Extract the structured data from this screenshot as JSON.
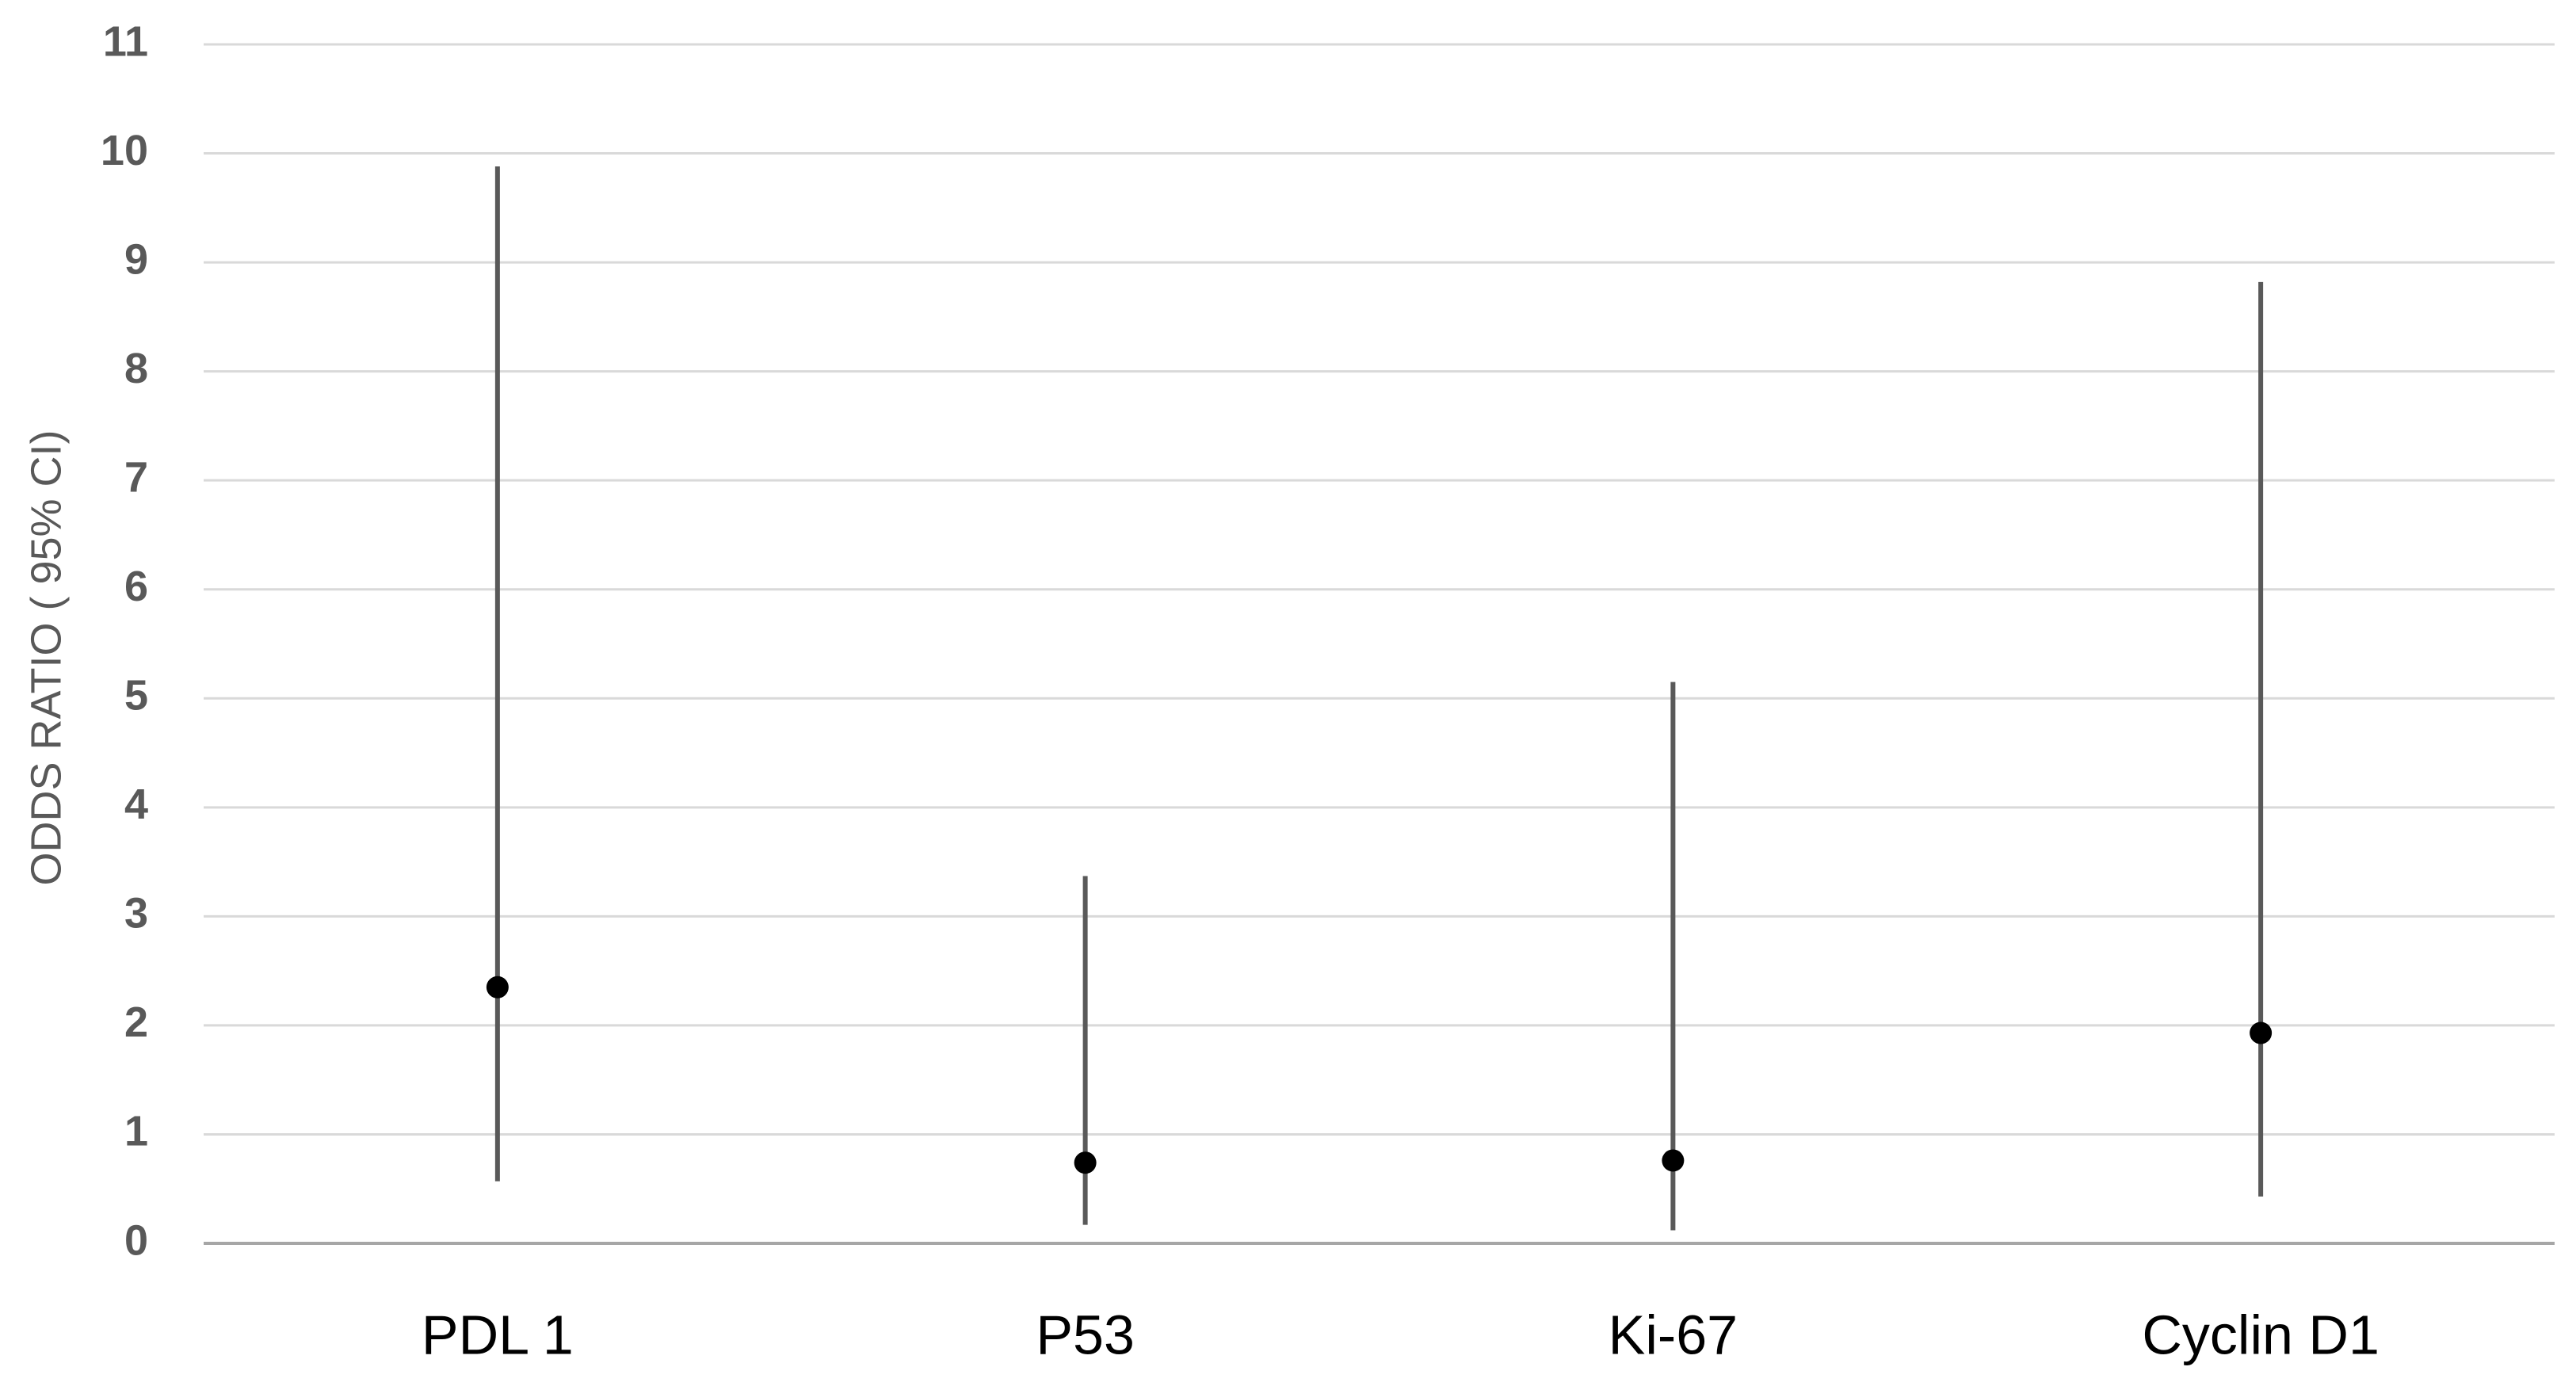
{
  "chart_data": {
    "type": "ci",
    "y_label": "ODDS RATIO ( 95% CI)",
    "categories": [
      "PDL 1",
      "P53",
      "Ki-67",
      "Cyclin D1"
    ],
    "values": [
      2.35,
      0.74,
      0.76,
      1.93
    ],
    "ci_low": [
      0.57,
      0.17,
      0.12,
      0.43
    ],
    "ci_high": [
      9.88,
      3.37,
      5.15,
      8.82
    ],
    "color": "#000000",
    "ci_color": "#595959",
    "ylim": [
      0,
      11
    ],
    "yticks": [
      0,
      1,
      2,
      3,
      4,
      5,
      6,
      7,
      8,
      9,
      10,
      11
    ],
    "grid": true
  }
}
